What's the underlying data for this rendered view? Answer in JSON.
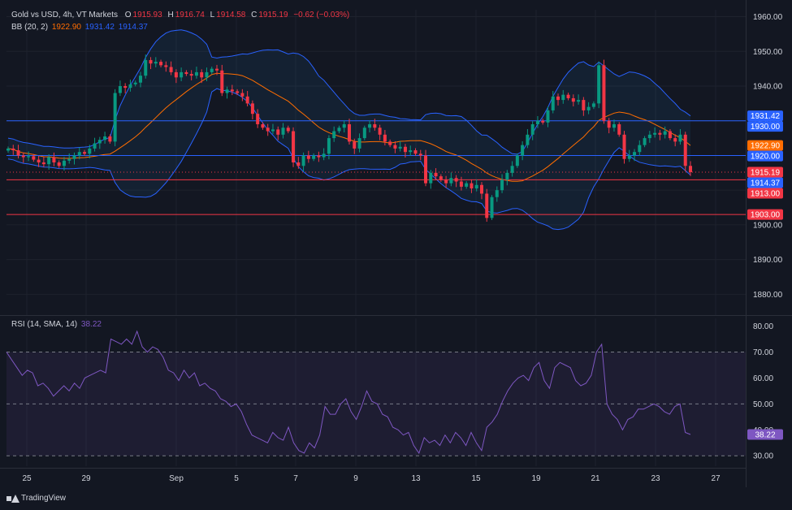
{
  "header": {
    "symbol": "Gold vs USD, 4h, VT Markets",
    "o_label": "O",
    "o_value": "1915.93",
    "h_label": "H",
    "h_value": "1916.74",
    "l_label": "L",
    "l_value": "1914.58",
    "c_label": "C",
    "c_value": "1915.19",
    "change": "−0.62 (−0.03%)",
    "bb_label": "BB (20, 2)",
    "bb_basis": "1922.90",
    "bb_upper": "1931.42",
    "bb_lower": "1914.37",
    "rsi_label": "RSI (14, SMA, 14)",
    "rsi_value": "38.22"
  },
  "branding": "TradingView",
  "colors": {
    "bg": "#131722",
    "up": "#089981",
    "down": "#f23645",
    "bb_band": "#2962ff",
    "basis": "#ff6d00",
    "rsi": "#7e57c2",
    "grid": "#1e222d",
    "text": "#d1d4dc"
  },
  "chart_data": [
    {
      "type": "candlestick",
      "title": "Gold vs USD, 4h, VT Markets",
      "ylim": [
        1874,
        1962
      ],
      "y_ticks": [
        1960,
        1950,
        1940,
        1930,
        1920,
        1910,
        1900,
        1890,
        1880
      ],
      "y_tick_labels": [
        "1960.00",
        "1950.00",
        "1940.00",
        "1930.00",
        "1920.00",
        "1910.00",
        "1900.00",
        "1890.00",
        "1880.00"
      ],
      "x_labels": [
        "25",
        "29",
        "Sep",
        "5",
        "7",
        "9",
        "13",
        "15",
        "19",
        "21",
        "23",
        "27"
      ],
      "close": [
        1922.0,
        1921.5,
        1920.0,
        1919.5,
        1919.8,
        1918.8,
        1918.0,
        1917.5,
        1919.5,
        1918.0,
        1917.0,
        1918.5,
        1919.0,
        1920.0,
        1921.0,
        1920.5,
        1922.0,
        1923.5,
        1924.5,
        1925.5,
        1924.0,
        1938.0,
        1940.0,
        1939.5,
        1940.5,
        1941.0,
        1943.0,
        1947.5,
        1946.5,
        1947.0,
        1946.0,
        1945.5,
        1944.0,
        1942.5,
        1944.0,
        1943.5,
        1943.0,
        1944.0,
        1942.5,
        1944.0,
        1945.0,
        1944.5,
        1938.0,
        1939.0,
        1938.5,
        1938.0,
        1937.0,
        1935.0,
        1932.0,
        1929.0,
        1928.0,
        1927.0,
        1927.5,
        1926.0,
        1928.0,
        1927.0,
        1918.0,
        1917.0,
        1920.0,
        1919.0,
        1920.0,
        1919.5,
        1920.5,
        1925.0,
        1927.0,
        1928.0,
        1929.0,
        1924.0,
        1922.0,
        1925.0,
        1928.0,
        1929.0,
        1928.0,
        1926.0,
        1924.0,
        1923.0,
        1922.0,
        1922.5,
        1921.0,
        1921.5,
        1920.5,
        1920.0,
        1912.0,
        1915.0,
        1914.0,
        1913.0,
        1912.0,
        1913.5,
        1912.5,
        1911.0,
        1912.0,
        1910.5,
        1911.5,
        1909.0,
        1902.0,
        1908.0,
        1910.0,
        1913.0,
        1915.0,
        1917.0,
        1920.0,
        1923.0,
        1926.0,
        1929.0,
        1930.0,
        1929.5,
        1933.0,
        1937.0,
        1936.0,
        1937.5,
        1936.5,
        1935.5,
        1936.0,
        1933.0,
        1934.0,
        1935.0,
        1946.0,
        1930.0,
        1928.0,
        1929.0,
        1926.0,
        1919.0,
        1920.0,
        1921.0,
        1923.0,
        1925.0,
        1926.0,
        1926.5,
        1926.0,
        1927.0,
        1925.0,
        1924.0,
        1926.0,
        1917.0,
        1915.19
      ],
      "series": [
        {
          "name": "BB basis",
          "value_last": 1922.9
        },
        {
          "name": "BB upper",
          "value_last": 1931.42
        },
        {
          "name": "BB lower",
          "value_last": 1914.37
        }
      ],
      "horizontal_levels": [
        {
          "value": 1930.0,
          "label": "1930.00",
          "color": "#2962ff"
        },
        {
          "value": 1920.0,
          "label": "1920.00",
          "color": "#2962ff"
        },
        {
          "value": 1913.0,
          "label": "1913.00",
          "color": "#f23645"
        },
        {
          "value": 1903.0,
          "label": "1903.00",
          "color": "#f23645"
        }
      ],
      "price_badges": [
        {
          "value": 1931.42,
          "label": "1931.42",
          "color": "#2962ff"
        },
        {
          "value": 1930.0,
          "label": "1930.00",
          "color": "#2962ff"
        },
        {
          "value": 1922.9,
          "label": "1922.90",
          "color": "#ff6d00"
        },
        {
          "value": 1920.0,
          "label": "1920.00",
          "color": "#2962ff"
        },
        {
          "value": 1915.19,
          "label": "1915.19",
          "color": "#f23645"
        },
        {
          "value": 1914.37,
          "label": "1914.37",
          "color": "#2962ff"
        },
        {
          "value": 1913.0,
          "label": "1913.00",
          "color": "#f23645"
        },
        {
          "value": 1903.0,
          "label": "1903.00",
          "color": "#f23645"
        }
      ]
    },
    {
      "type": "line",
      "title": "RSI (14, SMA, 14)",
      "ylim": [
        26,
        83
      ],
      "y_ticks": [
        80,
        70,
        60,
        50,
        40,
        30
      ],
      "y_tick_labels": [
        "80.00",
        "70.00",
        "60.00",
        "50.00",
        "40.00",
        "30.00"
      ],
      "bands": [
        70,
        50,
        30
      ],
      "values": [
        70,
        67,
        64,
        61,
        63,
        62,
        57,
        58,
        56,
        53,
        55,
        57,
        55,
        58,
        56,
        60,
        61,
        62,
        63,
        62,
        75,
        74,
        73,
        75,
        73,
        78,
        72,
        70,
        72,
        71,
        68,
        63,
        62,
        59,
        63,
        60,
        62,
        57,
        58,
        56,
        55,
        52,
        51,
        49,
        50,
        47,
        42,
        38,
        37,
        36,
        35,
        39,
        37,
        36,
        41,
        35,
        32,
        31,
        35,
        33,
        38,
        49,
        46,
        46,
        50,
        52,
        47,
        44,
        49,
        55,
        51,
        50,
        46,
        45,
        41,
        40,
        38,
        39,
        34,
        31,
        37,
        35,
        36,
        34,
        38,
        35,
        39,
        37,
        34,
        39,
        35,
        32,
        41,
        43,
        46,
        51,
        55,
        58,
        60,
        61,
        59,
        64,
        66,
        59,
        56,
        64,
        66,
        65,
        64,
        59,
        57,
        58,
        61,
        70,
        73,
        50,
        46,
        44,
        40,
        44,
        45,
        48,
        48,
        49,
        50,
        49,
        47,
        46,
        49,
        50,
        39,
        38.22
      ],
      "value_last": "38.22"
    }
  ]
}
